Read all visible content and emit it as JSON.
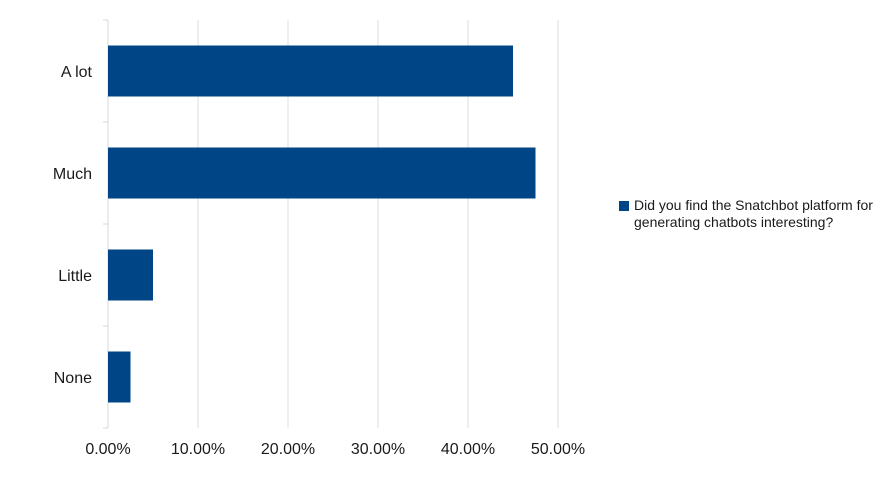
{
  "chart_data": {
    "type": "bar",
    "orientation": "horizontal",
    "categories": [
      "A lot",
      "Much",
      "Little",
      "None"
    ],
    "series": [
      {
        "name": "Did you find the Snatchbot platform for generating chatbots interesting?",
        "values": [
          45.0,
          47.5,
          5.0,
          2.5
        ],
        "color": "#004586"
      }
    ],
    "xlim": [
      0,
      50
    ],
    "xticks": [
      "0.00%",
      "10.00%",
      "20.00%",
      "30.00%",
      "40.00%",
      "50.00%"
    ],
    "grid": true,
    "legend_position": "right"
  }
}
